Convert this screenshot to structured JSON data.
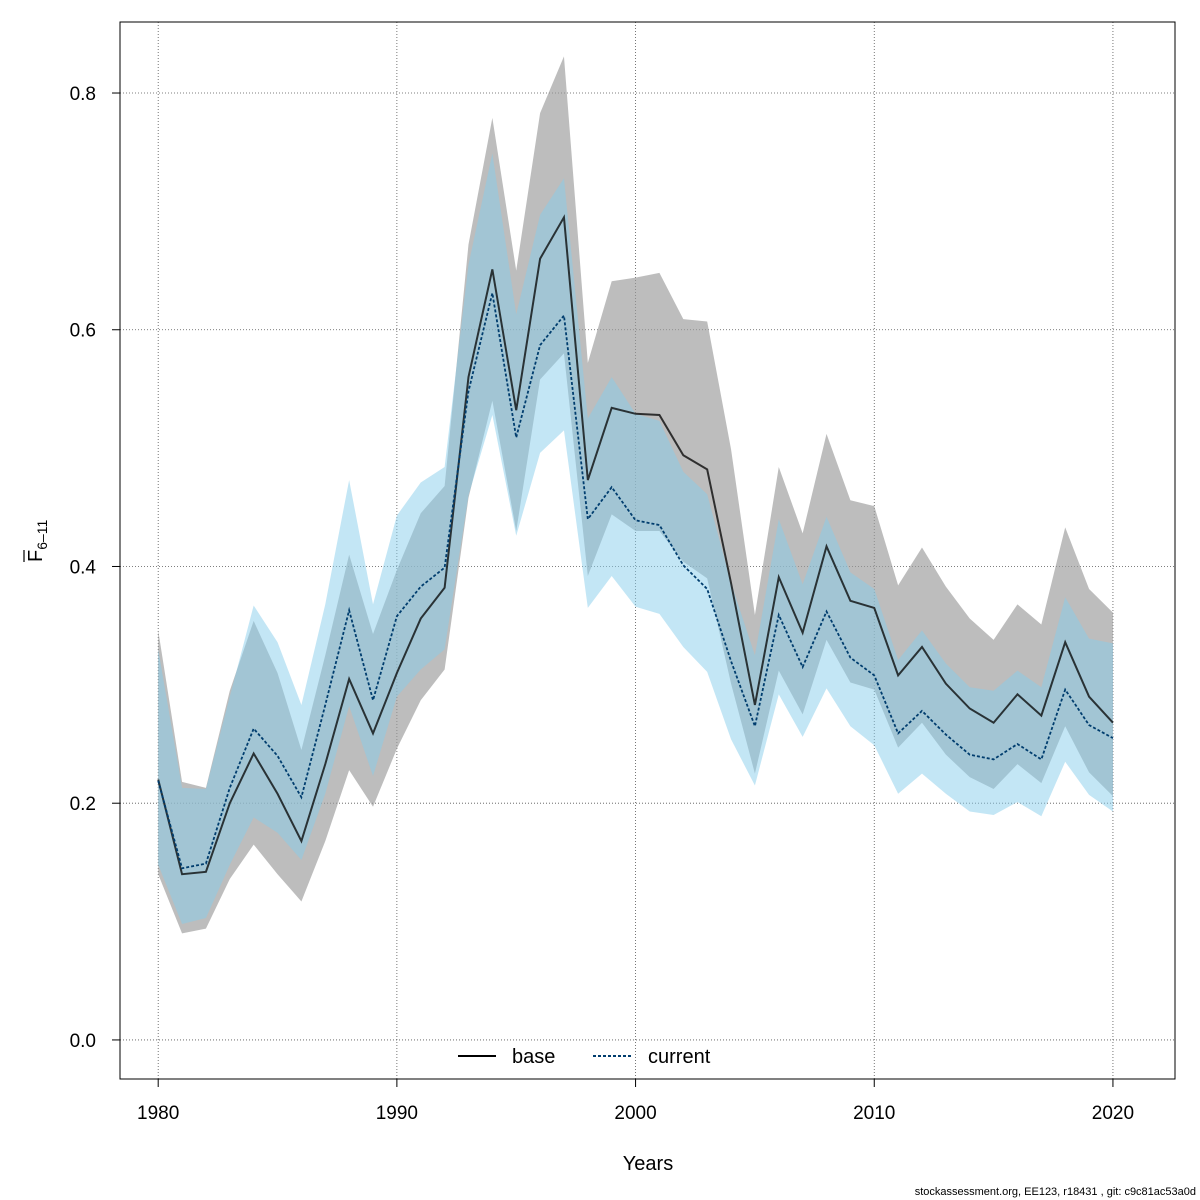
{
  "chart_data": {
    "type": "area",
    "xlabel": "Years",
    "ylabel_main": "F",
    "ylabel_sub": "6–11",
    "x_ticks": [
      1980,
      1990,
      2000,
      2010,
      2020
    ],
    "y_ticks": [
      0.0,
      0.2,
      0.4,
      0.6,
      0.8
    ],
    "y_tick_labels": [
      "0.0",
      "0.2",
      "0.4",
      "0.6",
      "0.8"
    ],
    "xlim": [
      1978.4,
      2022.6
    ],
    "ylim": [
      -0.033,
      0.86
    ],
    "grid": true,
    "legend_position": "bottom-center",
    "x": [
      1980,
      1981,
      1982,
      1983,
      1984,
      1985,
      1986,
      1987,
      1988,
      1989,
      1990,
      1991,
      1992,
      1993,
      1994,
      1995,
      1996,
      1997,
      1998,
      1999,
      2000,
      2001,
      2002,
      2003,
      2004,
      2005,
      2006,
      2007,
      2008,
      2009,
      2010,
      2011,
      2012,
      2013,
      2014,
      2015,
      2016,
      2017,
      2018,
      2019,
      2020
    ],
    "series": [
      {
        "name": "base",
        "color": "#000000",
        "band_color": "#9a9a9a",
        "value": [
          0.22,
          0.14,
          0.142,
          0.2,
          0.242,
          0.208,
          0.168,
          0.233,
          0.305,
          0.259,
          0.31,
          0.356,
          0.382,
          0.56,
          0.651,
          0.532,
          0.66,
          0.695,
          0.473,
          0.534,
          0.529,
          0.528,
          0.494,
          0.482,
          0.386,
          0.283,
          0.391,
          0.344,
          0.417,
          0.371,
          0.365,
          0.308,
          0.332,
          0.301,
          0.28,
          0.268,
          0.292,
          0.274,
          0.336,
          0.29,
          0.268
        ],
        "lower": [
          0.14,
          0.09,
          0.094,
          0.136,
          0.165,
          0.14,
          0.117,
          0.168,
          0.228,
          0.197,
          0.246,
          0.287,
          0.313,
          0.458,
          0.54,
          0.43,
          0.558,
          0.58,
          0.392,
          0.444,
          0.43,
          0.43,
          0.404,
          0.39,
          0.301,
          0.225,
          0.312,
          0.275,
          0.338,
          0.302,
          0.296,
          0.247,
          0.268,
          0.241,
          0.222,
          0.212,
          0.233,
          0.217,
          0.265,
          0.226,
          0.206
        ],
        "upper": [
          0.346,
          0.218,
          0.213,
          0.295,
          0.354,
          0.31,
          0.245,
          0.325,
          0.41,
          0.343,
          0.397,
          0.445,
          0.468,
          0.672,
          0.779,
          0.65,
          0.783,
          0.831,
          0.572,
          0.641,
          0.644,
          0.648,
          0.609,
          0.607,
          0.499,
          0.359,
          0.484,
          0.428,
          0.512,
          0.456,
          0.451,
          0.384,
          0.416,
          0.383,
          0.356,
          0.338,
          0.368,
          0.351,
          0.433,
          0.381,
          0.361
        ]
      },
      {
        "name": "current",
        "color": "#003d6e",
        "band_color": "#87ceeb",
        "value": [
          0.219,
          0.145,
          0.149,
          0.213,
          0.263,
          0.24,
          0.205,
          0.283,
          0.363,
          0.287,
          0.358,
          0.383,
          0.399,
          0.548,
          0.631,
          0.509,
          0.587,
          0.612,
          0.44,
          0.467,
          0.439,
          0.435,
          0.401,
          0.381,
          0.32,
          0.265,
          0.359,
          0.315,
          0.362,
          0.323,
          0.308,
          0.259,
          0.278,
          0.258,
          0.241,
          0.237,
          0.25,
          0.237,
          0.296,
          0.266,
          0.255
        ],
        "lower": [
          0.148,
          0.098,
          0.103,
          0.148,
          0.188,
          0.175,
          0.152,
          0.208,
          0.282,
          0.223,
          0.29,
          0.313,
          0.33,
          0.46,
          0.528,
          0.426,
          0.496,
          0.515,
          0.365,
          0.392,
          0.366,
          0.36,
          0.332,
          0.311,
          0.254,
          0.215,
          0.292,
          0.256,
          0.297,
          0.265,
          0.249,
          0.208,
          0.225,
          0.208,
          0.193,
          0.19,
          0.201,
          0.189,
          0.235,
          0.207,
          0.193
        ],
        "upper": [
          0.33,
          0.213,
          0.212,
          0.29,
          0.367,
          0.336,
          0.283,
          0.368,
          0.473,
          0.368,
          0.443,
          0.471,
          0.484,
          0.655,
          0.749,
          0.613,
          0.697,
          0.728,
          0.525,
          0.56,
          0.529,
          0.523,
          0.48,
          0.461,
          0.386,
          0.325,
          0.44,
          0.385,
          0.442,
          0.395,
          0.381,
          0.321,
          0.346,
          0.318,
          0.298,
          0.295,
          0.312,
          0.298,
          0.374,
          0.339,
          0.335
        ]
      }
    ]
  },
  "footer": {
    "note": "stockassessment.org, EE123, r18431 , git: c9c81ac53a0d"
  }
}
